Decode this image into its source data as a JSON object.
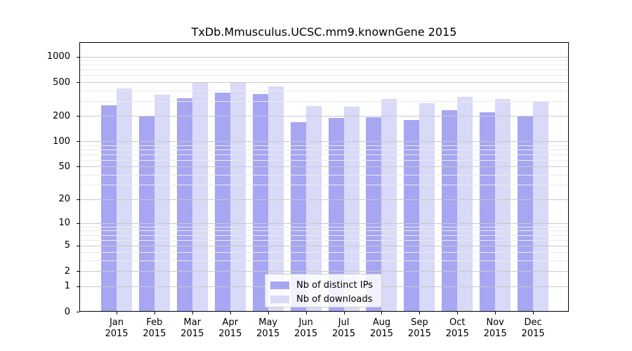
{
  "chart_data": {
    "type": "bar",
    "title": "TxDb.Mmusculus.UCSC.mm9.knownGene 2015",
    "categories": [
      "Jan",
      "Feb",
      "Mar",
      "Apr",
      "May",
      "Jun",
      "Jul",
      "Aug",
      "Sep",
      "Oct",
      "Nov",
      "Dec"
    ],
    "category_year": "2015",
    "series": [
      {
        "name": "Nb of distinct IPs",
        "color": "#a6a6f2",
        "values": [
          266,
          201,
          323,
          375,
          362,
          168,
          191,
          194,
          180,
          232,
          219,
          201
        ]
      },
      {
        "name": "Nb of downloads",
        "color": "#d9d9f8",
        "values": [
          425,
          358,
          497,
          501,
          446,
          262,
          256,
          317,
          281,
          336,
          318,
          294
        ]
      }
    ],
    "yscale": "log1p",
    "ylim": [
      0,
      1480
    ],
    "y_major_ticks": [
      0,
      1,
      2,
      5,
      10,
      20,
      50,
      100,
      200,
      500,
      1000
    ],
    "y_minor_gridlines": [
      3,
      4,
      6,
      7,
      8,
      9,
      30,
      40,
      60,
      70,
      80,
      90,
      300,
      400,
      600,
      700,
      800,
      900
    ],
    "grid": "horizontal",
    "legend_position": "inside-bottom-center",
    "xlabel": "",
    "ylabel": ""
  },
  "colors": {
    "background": "#ffffff",
    "axis": "#000000",
    "grid_major": "#c9c9c9",
    "grid_minor": "#ebebeb",
    "bar_distinct_ips": "#a6a6f2",
    "bar_downloads": "#d9d9f8"
  }
}
